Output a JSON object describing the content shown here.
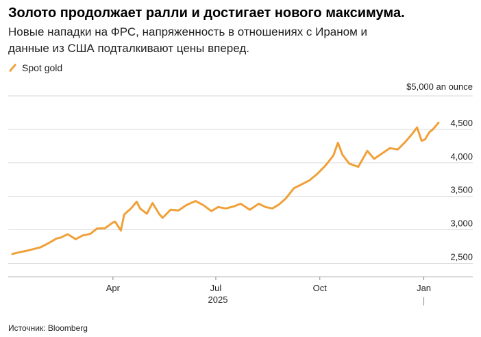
{
  "header": {
    "title": "Золото продолжает ралли и достигает нового максимума.",
    "subtitle": "Новые нападки на ФРС, напряженность в отношениях с Ираном и данные из США подталкивают цены вперед."
  },
  "legend": {
    "label": "Spot gold",
    "color": "#f0a038"
  },
  "source": "Источник: Bloomberg",
  "chart_data": {
    "type": "line",
    "title": "",
    "y_unit_label": "$5,000 an ounce",
    "ylim": [
      2300,
      5000
    ],
    "y_ticks": [
      2500,
      3000,
      3500,
      4000,
      4500
    ],
    "y_tick_labels": [
      "2,500",
      "3,000",
      "3,500",
      "4,000",
      "4,500"
    ],
    "x_start": "2025-01-02",
    "x_end": "2026-01-14",
    "x_ticks": [
      {
        "date": "2025-04-01",
        "label": "Apr"
      },
      {
        "date": "2025-07-01",
        "label": "Jul"
      },
      {
        "date": "2025-10-01",
        "label": "Oct"
      },
      {
        "date": "2026-01-01",
        "label": "Jan"
      }
    ],
    "year_label": "2025",
    "grid": true,
    "series": [
      {
        "name": "Spot gold",
        "color": "#f0a038",
        "points": [
          [
            "2025-01-02",
            2640
          ],
          [
            "2025-01-08",
            2665
          ],
          [
            "2025-01-14",
            2685
          ],
          [
            "2025-01-20",
            2710
          ],
          [
            "2025-01-27",
            2740
          ],
          [
            "2025-02-03",
            2800
          ],
          [
            "2025-02-10",
            2870
          ],
          [
            "2025-02-14",
            2885
          ],
          [
            "2025-02-20",
            2935
          ],
          [
            "2025-02-27",
            2860
          ],
          [
            "2025-03-05",
            2915
          ],
          [
            "2025-03-12",
            2940
          ],
          [
            "2025-03-18",
            3020
          ],
          [
            "2025-03-25",
            3025
          ],
          [
            "2025-04-01",
            3110
          ],
          [
            "2025-04-03",
            3120
          ],
          [
            "2025-04-08",
            2990
          ],
          [
            "2025-04-11",
            3230
          ],
          [
            "2025-04-17",
            3320
          ],
          [
            "2025-04-22",
            3420
          ],
          [
            "2025-04-25",
            3320
          ],
          [
            "2025-05-01",
            3240
          ],
          [
            "2025-05-06",
            3400
          ],
          [
            "2025-05-12",
            3235
          ],
          [
            "2025-05-15",
            3180
          ],
          [
            "2025-05-22",
            3300
          ],
          [
            "2025-05-29",
            3290
          ],
          [
            "2025-06-05",
            3370
          ],
          [
            "2025-06-13",
            3430
          ],
          [
            "2025-06-20",
            3370
          ],
          [
            "2025-06-27",
            3280
          ],
          [
            "2025-07-03",
            3340
          ],
          [
            "2025-07-10",
            3320
          ],
          [
            "2025-07-17",
            3350
          ],
          [
            "2025-07-23",
            3390
          ],
          [
            "2025-07-31",
            3300
          ],
          [
            "2025-08-08",
            3390
          ],
          [
            "2025-08-14",
            3340
          ],
          [
            "2025-08-20",
            3320
          ],
          [
            "2025-08-26",
            3380
          ],
          [
            "2025-09-01",
            3470
          ],
          [
            "2025-09-08",
            3620
          ],
          [
            "2025-09-15",
            3680
          ],
          [
            "2025-09-22",
            3740
          ],
          [
            "2025-09-29",
            3840
          ],
          [
            "2025-10-06",
            3960
          ],
          [
            "2025-10-13",
            4110
          ],
          [
            "2025-10-17",
            4300
          ],
          [
            "2025-10-21",
            4120
          ],
          [
            "2025-10-27",
            3990
          ],
          [
            "2025-11-04",
            3940
          ],
          [
            "2025-11-12",
            4180
          ],
          [
            "2025-11-18",
            4060
          ],
          [
            "2025-11-25",
            4140
          ],
          [
            "2025-12-02",
            4220
          ],
          [
            "2025-12-09",
            4200
          ],
          [
            "2025-12-16",
            4320
          ],
          [
            "2025-12-22",
            4440
          ],
          [
            "2025-12-26",
            4530
          ],
          [
            "2025-12-30",
            4330
          ],
          [
            "2026-01-02",
            4350
          ],
          [
            "2026-01-06",
            4460
          ],
          [
            "2026-01-09",
            4500
          ],
          [
            "2026-01-14",
            4600
          ]
        ]
      }
    ]
  }
}
